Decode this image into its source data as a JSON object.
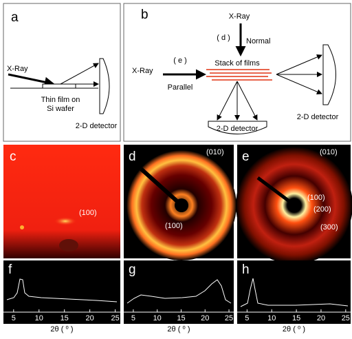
{
  "panels": {
    "a": {
      "label": "a",
      "xray": "X-Ray",
      "film_line1": "Thin film on",
      "film_line2": "Si wafer",
      "detector": "2-D detector"
    },
    "b": {
      "label": "b",
      "xray_top": "X-Ray",
      "d_mark": "( d )",
      "normal": "Normal",
      "stack": "Stack of films",
      "xray_left": "X-Ray",
      "e_mark": "( e )",
      "parallel": "Parallel",
      "detector_bottom": "2-D detector",
      "detector_right": "2-D detector"
    },
    "c": {
      "label": "c",
      "peaks": [
        "(100)"
      ]
    },
    "d": {
      "label": "d",
      "peaks": [
        "(010)",
        "(100)"
      ]
    },
    "e": {
      "label": "e",
      "peaks": [
        "(010)",
        "(100)",
        "(200)",
        "(300)"
      ]
    },
    "f": {
      "label": "f"
    },
    "g": {
      "label": "g"
    },
    "h": {
      "label": "h"
    }
  },
  "plots": {
    "xlabel": "2θ ( ⁰ )",
    "xlim": [
      3,
      26
    ],
    "xticks": [
      5,
      10,
      15,
      20,
      25
    ]
  }
}
